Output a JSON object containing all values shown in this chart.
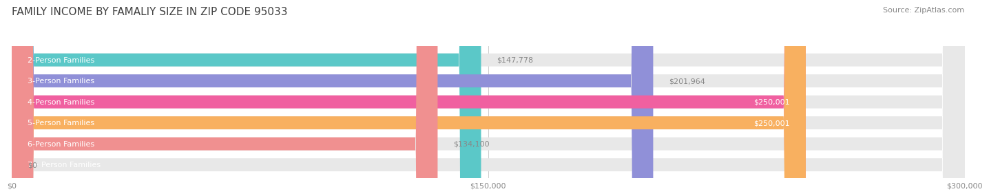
{
  "title": "FAMILY INCOME BY FAMALIY SIZE IN ZIP CODE 95033",
  "source": "Source: ZipAtlas.com",
  "categories": [
    "2-Person Families",
    "3-Person Families",
    "4-Person Families",
    "5-Person Families",
    "6-Person Families",
    "7+ Person Families"
  ],
  "values": [
    147778,
    201964,
    250001,
    250001,
    134100,
    0
  ],
  "labels": [
    "$147,778",
    "$201,964",
    "$250,001",
    "$250,001",
    "$134,100",
    "$0"
  ],
  "bar_colors": [
    "#5bc8c8",
    "#9090d8",
    "#f060a0",
    "#f8b060",
    "#f09090",
    "#a0c8f0"
  ],
  "bar_bg_color": "#e8e8e8",
  "xlim": [
    0,
    300000
  ],
  "xticks": [
    0,
    150000,
    300000
  ],
  "xticklabels": [
    "$0",
    "$150,000",
    "$300,000"
  ],
  "label_threshold": 220000,
  "bar_height": 0.62,
  "bg_color": "#ffffff",
  "title_color": "#404040",
  "title_fontsize": 11,
  "source_fontsize": 8,
  "category_fontsize": 8,
  "value_fontsize": 8
}
